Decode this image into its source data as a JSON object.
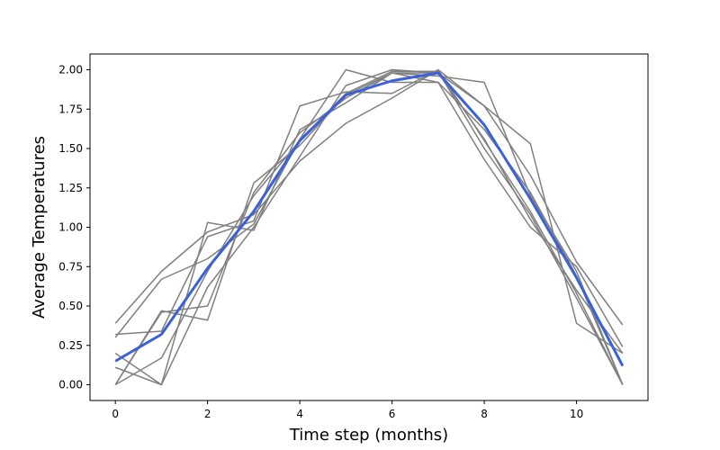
{
  "chart_data": {
    "type": "line",
    "title": "",
    "xlabel": "Time step (months)",
    "ylabel": "Average Temperatures",
    "xlim": [
      -0.55,
      11.55
    ],
    "ylim": [
      -0.1,
      2.1
    ],
    "xticks": [
      0,
      2,
      4,
      6,
      8,
      10
    ],
    "xtick_labels": [
      "0",
      "2",
      "4",
      "6",
      "8",
      "10"
    ],
    "yticks": [
      0.0,
      0.25,
      0.5,
      0.75,
      1.0,
      1.25,
      1.5,
      1.75,
      2.0
    ],
    "ytick_labels": [
      "0.00",
      "0.25",
      "0.50",
      "0.75",
      "1.00",
      "1.25",
      "1.50",
      "1.75",
      "2.00"
    ],
    "grid": false,
    "legend": "none",
    "x": [
      0,
      1,
      2,
      3,
      4,
      5,
      6,
      7,
      8,
      9,
      10,
      11
    ],
    "series": [
      {
        "color": "#808080",
        "values": [
          0.39,
          0.72,
          0.97,
          1.08,
          1.42,
          1.66,
          1.82,
          2.0,
          1.77,
          1.33,
          0.78,
          0.38
        ]
      },
      {
        "color": "#808080",
        "values": [
          0.32,
          0.34,
          0.94,
          1.04,
          1.77,
          1.86,
          1.85,
          2.0,
          1.55,
          1.1,
          0.58,
          0.0
        ]
      },
      {
        "color": "#808080",
        "values": [
          0.3,
          0.67,
          0.8,
          1.02,
          1.56,
          2.0,
          1.92,
          1.92,
          1.43,
          1.0,
          0.75,
          0.24
        ]
      },
      {
        "color": "#808080",
        "values": [
          0.2,
          0.0,
          1.03,
          0.98,
          1.62,
          1.79,
          1.98,
          1.98,
          1.77,
          1.53,
          0.39,
          0.2
        ]
      },
      {
        "color": "#808080",
        "values": [
          0.0,
          0.47,
          0.41,
          1.28,
          1.52,
          1.84,
          1.98,
          1.96,
          1.92,
          1.2,
          0.72,
          0.0
        ]
      },
      {
        "color": "#808080",
        "values": [
          0.11,
          0.0,
          0.62,
          1.0,
          1.45,
          1.9,
          2.0,
          1.98,
          1.56,
          1.05,
          0.6,
          0.2
        ]
      },
      {
        "color": "#808080",
        "values": [
          0.0,
          0.17,
          0.72,
          1.2,
          1.55,
          1.85,
          1.99,
          1.99,
          1.5,
          1.08,
          0.55,
          0.0
        ]
      },
      {
        "color": "#808080",
        "values": [
          0.0,
          0.46,
          0.5,
          1.22,
          1.6,
          1.82,
          1.98,
          1.92,
          1.62,
          1.22,
          0.69,
          0.0
        ]
      },
      {
        "color": "#3b61d9",
        "values": [
          0.15,
          0.32,
          0.74,
          1.1,
          1.55,
          1.84,
          1.93,
          1.98,
          1.65,
          1.18,
          0.68,
          0.12
        ]
      }
    ]
  }
}
